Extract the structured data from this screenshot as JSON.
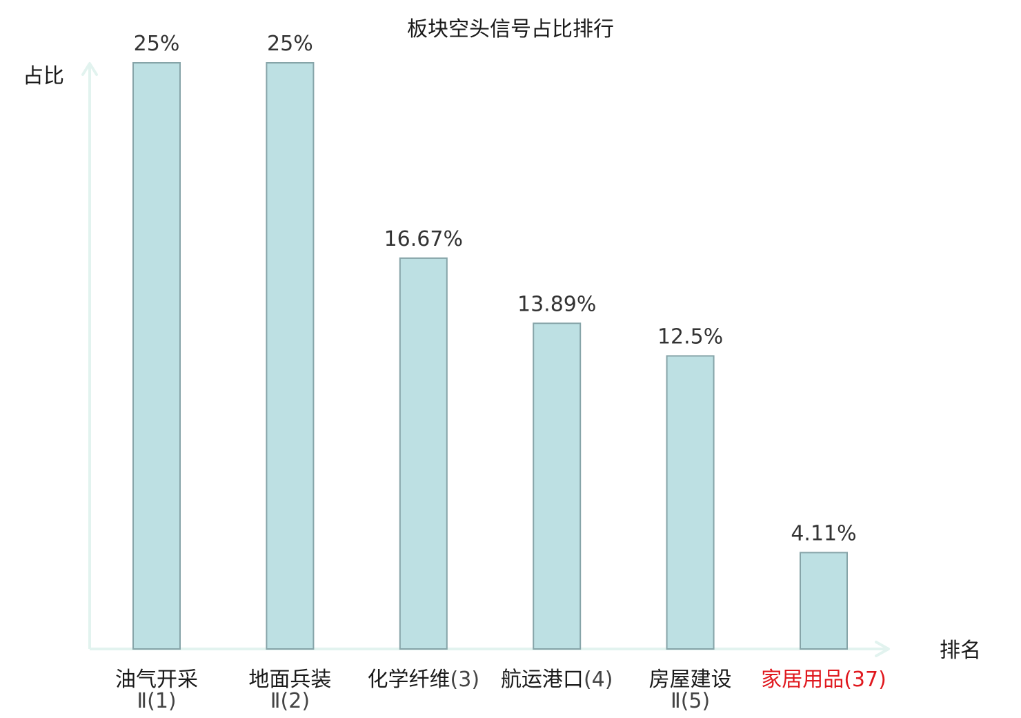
{
  "chart_data": {
    "type": "bar",
    "title": "板块空头信号占比排行",
    "ylabel": "占比",
    "xlabel": "排名",
    "ylim": [
      0,
      25
    ],
    "grid": false,
    "categories": [
      {
        "name": "油气开采",
        "suffix": "Ⅱ(1)",
        "wrap": true,
        "highlight": false
      },
      {
        "name": "地面兵装",
        "suffix": "Ⅱ(2)",
        "wrap": true,
        "highlight": false
      },
      {
        "name": "化学纤维",
        "suffix": "(3)",
        "wrap": false,
        "highlight": false
      },
      {
        "name": "航运港口",
        "suffix": "(4)",
        "wrap": false,
        "highlight": false
      },
      {
        "name": "房屋建设",
        "suffix": "Ⅱ(5)",
        "wrap": true,
        "highlight": false
      },
      {
        "name": "家居用品",
        "suffix": "(37)",
        "wrap": false,
        "highlight": true
      }
    ],
    "values": [
      25,
      25,
      16.67,
      13.89,
      12.5,
      4.11
    ],
    "value_labels": [
      "25%",
      "25%",
      "16.67%",
      "13.89%",
      "12.5%",
      "4.11%"
    ],
    "colors": {
      "bar_fill": "#bde0e3",
      "bar_stroke": "#86a4a8",
      "axis": "#e2f3ef",
      "text": "#1a1a1a",
      "suffix_text": "#444444",
      "highlight_text": "#e0181e"
    }
  }
}
